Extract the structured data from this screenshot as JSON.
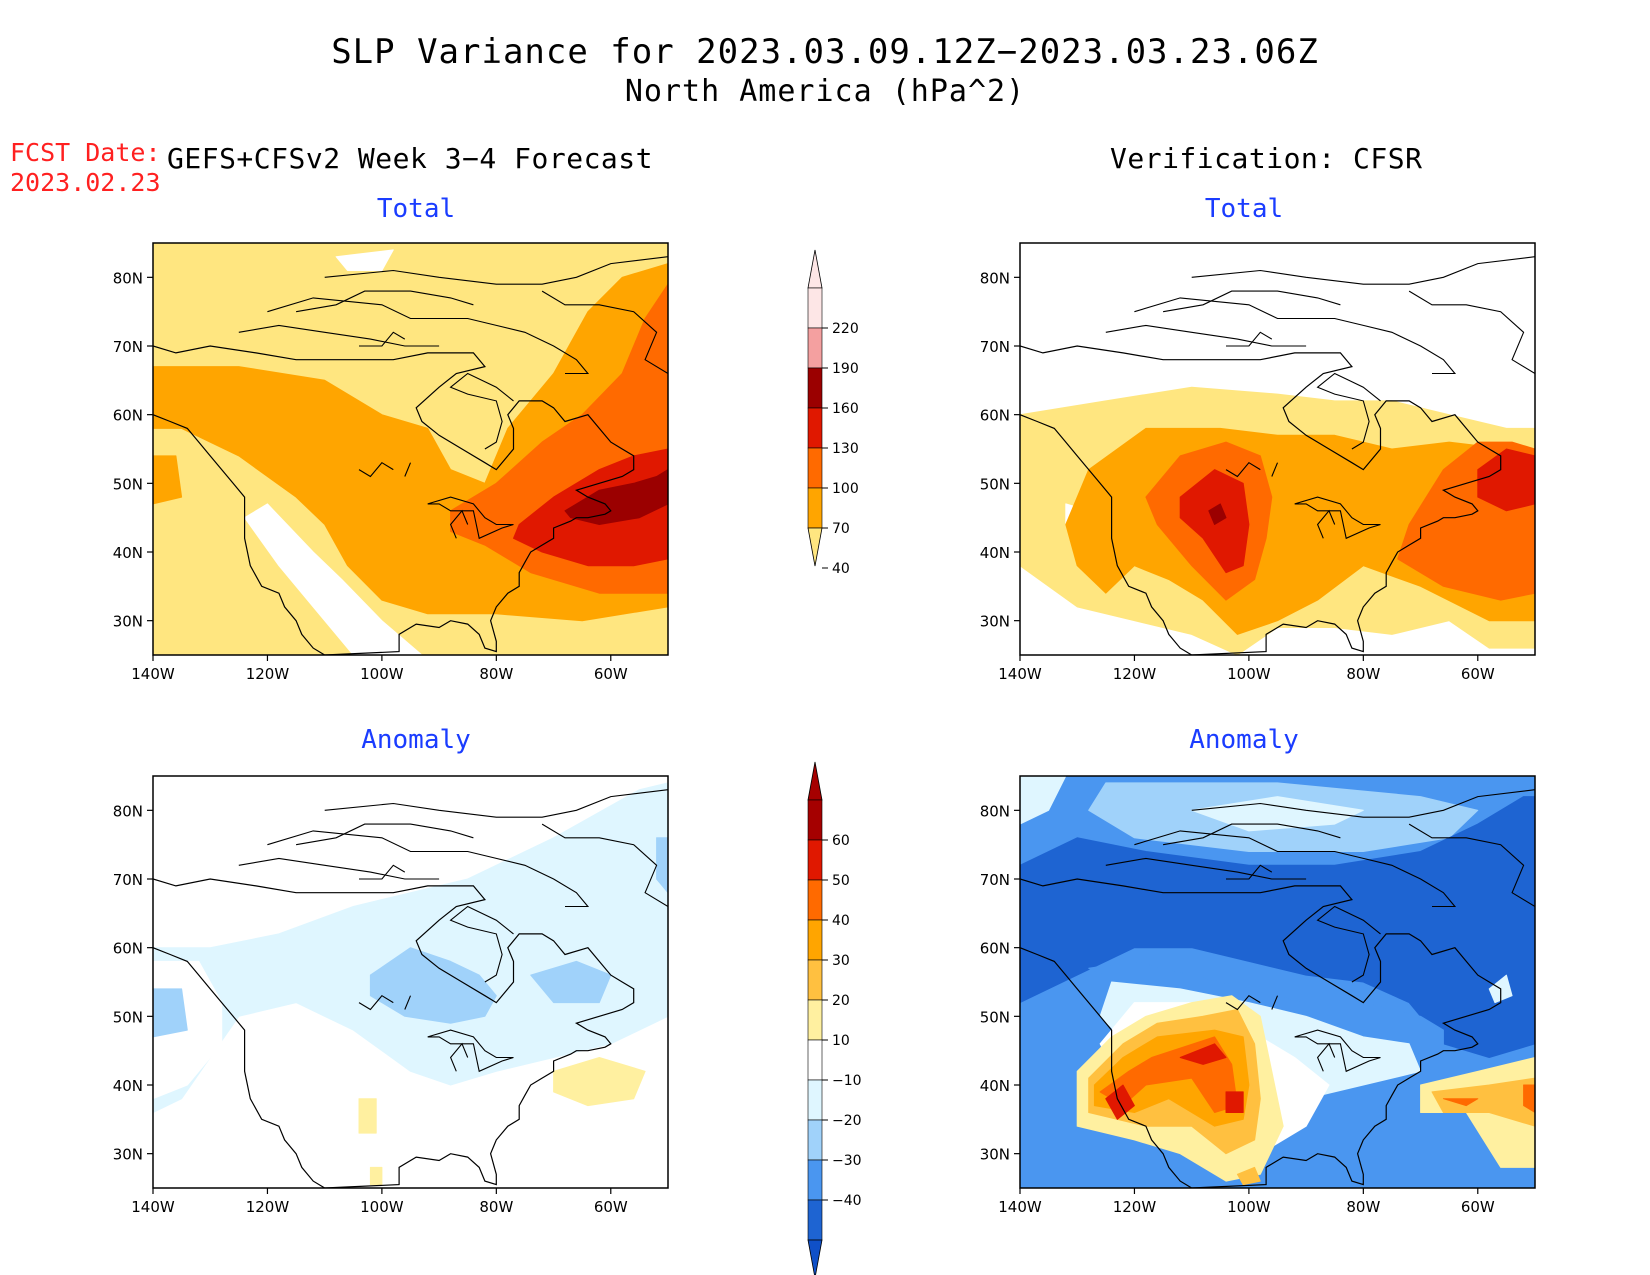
{
  "title": {
    "line1": "SLP Variance for 2023.03.09.12Z−2023.03.23.06Z",
    "line2": "North America (hPa^2)"
  },
  "fcst_label": "FCST Date:\n2023.02.23",
  "left_header": "GEFS+CFSv2 Week 3−4 Forecast",
  "right_header": "Verification: CFSR",
  "panels": [
    {
      "id": "forecast-total",
      "title": "Total"
    },
    {
      "id": "verif-total",
      "title": "Total"
    },
    {
      "id": "forecast-anomaly",
      "title": "Anomaly"
    },
    {
      "id": "verif-anomaly",
      "title": "Anomaly"
    }
  ],
  "axes": {
    "lon_ticks": [
      "140W",
      "120W",
      "100W",
      "80W",
      "60W"
    ],
    "lon_values": [
      -140,
      -120,
      -100,
      -80,
      -60
    ],
    "lat_ticks": [
      "80N",
      "70N",
      "60N",
      "50N",
      "40N",
      "30N"
    ],
    "lat_values": [
      80,
      70,
      60,
      50,
      40,
      30
    ],
    "lon_range": [
      -140,
      -50
    ],
    "lat_range": [
      25,
      85
    ]
  },
  "colorbar_total": {
    "labels": [
      "220",
      "190",
      "160",
      "130",
      "100",
      "70",
      "40"
    ],
    "colors": [
      "#fde6e6",
      "#f4a0a0",
      "#9b0000",
      "#e01800",
      "#ff6a00",
      "#ffa500",
      "#ffe680"
    ]
  },
  "colorbar_anomaly": {
    "labels": [
      "60",
      "50",
      "40",
      "30",
      "20",
      "10",
      "−10",
      "−20",
      "−30",
      "−40"
    ],
    "colors": [
      "#a50000",
      "#e01800",
      "#ff6a00",
      "#ffa500",
      "#ffc040",
      "#fff0a0",
      "#ffffff",
      "#dff6ff",
      "#a0d2fa",
      "#4a96f0",
      "#1e64d2",
      "#0f50c8"
    ]
  },
  "chart_data": [
    {
      "type": "map-contour",
      "panel": "forecast-total",
      "units": "hPa^2",
      "levels": [
        40,
        70,
        100,
        130,
        160,
        190,
        220
      ],
      "regions": [
        {
          "level": 40,
          "area": "most of domain except western US interior"
        },
        {
          "level": 70,
          "area": "Alaska to central Canada and US plains, eastern Canada"
        },
        {
          "level": 100,
          "area": "Great Lakes to NW Atlantic"
        },
        {
          "level": 130,
          "area": "northeastern US to Atlantic Canada"
        },
        {
          "level": 160,
          "area": "Nova Scotia / Gulf of St. Lawrence"
        }
      ]
    },
    {
      "type": "map-contour",
      "panel": "verif-total",
      "units": "hPa^2",
      "levels": [
        40,
        70,
        100,
        130,
        160
      ],
      "regions": [
        {
          "level": 40,
          "area": "band 25N-60N across continent"
        },
        {
          "level": 70,
          "area": "central US, Great Lakes, eastern seaboard"
        },
        {
          "level": 100,
          "area": "northern plains / Rockies, western Atlantic"
        },
        {
          "level": 130,
          "area": "northern Rockies, Newfoundland"
        },
        {
          "level": 160,
          "area": "Montana / Wyoming"
        }
      ]
    },
    {
      "type": "map-contour",
      "panel": "forecast-anomaly",
      "units": "hPa^2",
      "levels": [
        -20,
        -10,
        10
      ],
      "regions": [
        {
          "level": -10,
          "area": "central Canada, Great Lakes, Pacific NW"
        },
        {
          "level": -20,
          "area": "Hudson Bay south to Ontario"
        },
        {
          "level": 10,
          "area": "off US east coast, small patches in SW US"
        }
      ]
    },
    {
      "type": "map-contour",
      "panel": "verif-anomaly",
      "units": "hPa^2",
      "levels": [
        -40,
        -30,
        -20,
        -10,
        10,
        20,
        30,
        40,
        50,
        60
      ],
      "regions": [
        {
          "level": -30,
          "area": "Canada and Arctic broadly"
        },
        {
          "level": -40,
          "area": "western and northeastern Canada"
        },
        {
          "level": -10,
          "area": "northern US"
        },
        {
          "level": 10,
          "area": "western US interior, Atlantic"
        },
        {
          "level": 30,
          "area": "Nevada / Utah / Colorado"
        },
        {
          "level": 50,
          "area": "California coast, Colorado"
        }
      ]
    }
  ]
}
